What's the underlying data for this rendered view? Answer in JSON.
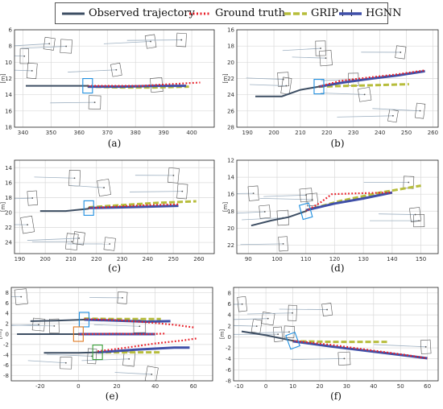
{
  "legend": {
    "observed": "Observed trajectory",
    "ground_truth": "Ground truth",
    "grip": "GRIP++",
    "hgnn": "HGNN"
  },
  "colors": {
    "observed": "#3d4e63",
    "ground_truth": "#e8202a",
    "grip": "#b7bd3c",
    "hgnn": "#3f4fa8",
    "grid": "#d9d9d9",
    "vehicle_box": "#555555",
    "other_traj": "#9fb1c2",
    "target_blue": "#1f8fe0",
    "target_orange": "#e07820",
    "target_green": "#3aa13a"
  },
  "ylabel": "[m]",
  "chart_data": [
    {
      "panel": "(a)",
      "type": "line",
      "xlim": [
        337,
        408
      ],
      "ylim": [
        18,
        6
      ],
      "grid": true,
      "xticks": [
        340,
        350,
        360,
        370,
        380,
        390,
        400
      ],
      "yticks": [
        6,
        8,
        10,
        12,
        14,
        16,
        18
      ],
      "observed": [
        [
          341,
          12.9
        ],
        [
          352,
          12.9
        ],
        [
          363,
          12.9
        ]
      ],
      "ground_truth": [
        [
          363,
          12.9
        ],
        [
          372,
          12.9
        ],
        [
          382,
          12.9
        ],
        [
          392,
          12.7
        ],
        [
          403,
          12.5
        ]
      ],
      "grip": [
        [
          363,
          13.0
        ],
        [
          375,
          13.1
        ],
        [
          387,
          13.1
        ],
        [
          399,
          13.0
        ]
      ],
      "hgnn": [
        [
          363,
          13.0
        ],
        [
          375,
          13.0
        ],
        [
          388,
          12.9
        ],
        [
          398,
          12.9
        ]
      ],
      "target": [
        363,
        12.9
      ]
    },
    {
      "panel": "(b)",
      "type": "line",
      "xlim": [
        186,
        262
      ],
      "ylim": [
        28,
        16
      ],
      "grid": true,
      "xticks": [
        190,
        200,
        210,
        220,
        230,
        240,
        250,
        260
      ],
      "yticks": [
        16,
        18,
        20,
        22,
        24,
        26,
        28
      ],
      "observed": [
        [
          193,
          24.2
        ],
        [
          203,
          24.2
        ],
        [
          210,
          23.4
        ],
        [
          217,
          23.0
        ]
      ],
      "ground_truth": [
        [
          217,
          23.0
        ],
        [
          225,
          22.3
        ],
        [
          235,
          21.9
        ],
        [
          246,
          21.5
        ],
        [
          257,
          21.0
        ]
      ],
      "grip": [
        [
          217,
          23.0
        ],
        [
          228,
          22.9
        ],
        [
          240,
          22.8
        ],
        [
          251,
          22.7
        ]
      ],
      "hgnn": [
        [
          217,
          23.0
        ],
        [
          226,
          22.5
        ],
        [
          237,
          22.0
        ],
        [
          247,
          21.6
        ],
        [
          257,
          21.1
        ]
      ],
      "target": [
        217,
        23.0
      ]
    },
    {
      "panel": "(c)",
      "type": "line",
      "xlim": [
        188,
        266
      ],
      "ylim": [
        25.5,
        13
      ],
      "grid": true,
      "xticks": [
        190,
        200,
        210,
        220,
        230,
        240,
        250,
        260
      ],
      "yticks": [
        14,
        16,
        18,
        20,
        22,
        24
      ],
      "observed": [
        [
          198,
          19.8
        ],
        [
          208,
          19.8
        ],
        [
          217,
          19.5
        ]
      ],
      "ground_truth": [
        [
          217,
          19.4
        ],
        [
          228,
          19.2
        ],
        [
          240,
          19.0
        ],
        [
          252,
          18.9
        ]
      ],
      "grip": [
        [
          217,
          19.3
        ],
        [
          230,
          19.0
        ],
        [
          244,
          18.7
        ],
        [
          259,
          18.5
        ]
      ],
      "hgnn": [
        [
          217,
          19.4
        ],
        [
          230,
          19.3
        ],
        [
          242,
          19.2
        ],
        [
          252,
          19.1
        ]
      ],
      "target": [
        217,
        19.4
      ]
    },
    {
      "panel": "(d)",
      "type": "line",
      "xlim": [
        86,
        156
      ],
      "ylim": [
        23,
        12
      ],
      "grid": true,
      "xticks": [
        90,
        100,
        110,
        120,
        130,
        140,
        150
      ],
      "yticks": [
        12,
        14,
        16,
        18,
        20,
        22
      ],
      "observed": [
        [
          91,
          19.7
        ],
        [
          98,
          19.1
        ],
        [
          104,
          18.7
        ],
        [
          110,
          18.0
        ]
      ],
      "ground_truth": [
        [
          110,
          18.0
        ],
        [
          115,
          17.0
        ],
        [
          119,
          16.0
        ],
        [
          128,
          15.9
        ],
        [
          140,
          15.8
        ]
      ],
      "grip": [
        [
          110,
          17.9
        ],
        [
          122,
          16.8
        ],
        [
          136,
          15.8
        ],
        [
          150,
          15.0
        ]
      ],
      "hgnn": [
        [
          110,
          17.9
        ],
        [
          120,
          17.1
        ],
        [
          130,
          16.5
        ],
        [
          140,
          15.8
        ]
      ],
      "target": [
        110,
        18.0
      ]
    },
    {
      "panel": "(e)",
      "type": "line",
      "xlim": [
        -35,
        70
      ],
      "ylim": [
        -9,
        9
      ],
      "grid": true,
      "xticks": [
        -20,
        0,
        20,
        40,
        60
      ],
      "yticks": [
        8,
        6,
        4,
        2,
        0,
        -2,
        -4,
        -6,
        -8
      ],
      "observed": [
        [
          -25,
          2.5
        ],
        [
          -12,
          2.6
        ],
        [
          3,
          2.8
        ]
      ],
      "ground_truth": [
        [
          3,
          2.9
        ],
        [
          20,
          2.7
        ],
        [
          35,
          2.3
        ],
        [
          50,
          1.8
        ],
        [
          60,
          1.3
        ]
      ],
      "grip": [
        [
          3,
          3.0
        ],
        [
          20,
          2.9
        ],
        [
          35,
          2.9
        ],
        [
          43,
          2.9
        ]
      ],
      "hgnn": [
        [
          3,
          2.8
        ],
        [
          20,
          2.6
        ],
        [
          35,
          2.4
        ],
        [
          48,
          2.5
        ]
      ],
      "observed_2": [
        [
          -32,
          0.0
        ],
        [
          -12,
          0.0
        ],
        [
          0,
          0.0
        ]
      ],
      "ground_truth_2": [
        [
          0,
          0.0
        ],
        [
          20,
          0.1
        ],
        [
          35,
          0.0
        ],
        [
          45,
          0.1
        ]
      ],
      "grip_2": [
        [
          0,
          0.0
        ],
        [
          20,
          0.0
        ],
        [
          40,
          0.0
        ]
      ],
      "hgnn_2": [
        [
          0,
          0.0
        ],
        [
          20,
          0.0
        ],
        [
          40,
          0.0
        ]
      ],
      "observed_3": [
        [
          -18,
          -3.6
        ],
        [
          0,
          -3.6
        ],
        [
          10,
          -3.5
        ]
      ],
      "ground_truth_3": [
        [
          10,
          -3.3
        ],
        [
          25,
          -2.6
        ],
        [
          40,
          -1.8
        ],
        [
          55,
          -1.2
        ],
        [
          62,
          -0.8
        ]
      ],
      "grip_3": [
        [
          10,
          -3.5
        ],
        [
          25,
          -3.5
        ],
        [
          43,
          -3.5
        ]
      ],
      "hgnn_3": [
        [
          10,
          -3.5
        ],
        [
          30,
          -3.0
        ],
        [
          50,
          -2.6
        ],
        [
          58,
          -2.6
        ]
      ],
      "targets": [
        [
          3,
          2.8
        ],
        [
          0,
          0.0
        ],
        [
          10,
          -3.5
        ]
      ]
    },
    {
      "panel": "(f)",
      "type": "line",
      "xlim": [
        -12,
        64
      ],
      "ylim": [
        -8,
        9
      ],
      "grid": true,
      "xticks": [
        -10,
        0,
        10,
        20,
        30,
        40,
        50,
        60
      ],
      "yticks": [
        8,
        6,
        4,
        2,
        0,
        -2,
        -4,
        -6,
        -8
      ],
      "observed": [
        [
          -9,
          1.0
        ],
        [
          0,
          0.3
        ],
        [
          10,
          -0.7
        ]
      ],
      "ground_truth": [
        [
          10,
          -0.7
        ],
        [
          25,
          -1.5
        ],
        [
          40,
          -2.5
        ],
        [
          52,
          -3.3
        ],
        [
          60,
          -3.9
        ]
      ],
      "grip": [
        [
          10,
          -0.8
        ],
        [
          25,
          -0.9
        ],
        [
          45,
          -0.9
        ]
      ],
      "hgnn": [
        [
          10,
          -0.8
        ],
        [
          25,
          -1.8
        ],
        [
          40,
          -2.7
        ],
        [
          52,
          -3.4
        ],
        [
          60,
          -3.9
        ]
      ],
      "target": [
        10,
        -0.7
      ]
    }
  ]
}
